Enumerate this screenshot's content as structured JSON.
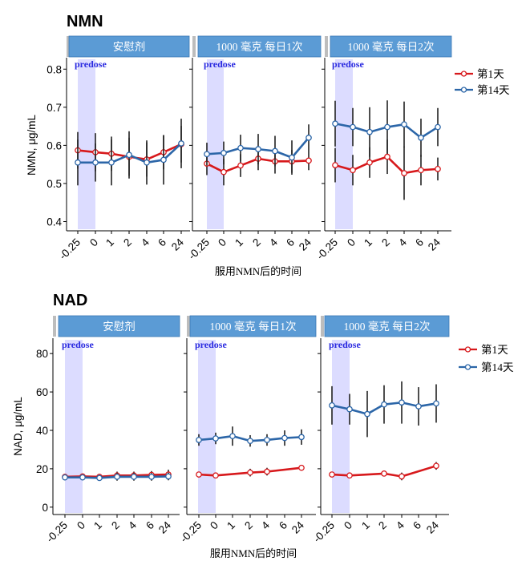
{
  "strip_labels": [
    "安慰剂",
    "1000 毫克 每日1次",
    "1000 毫克 每日2次"
  ],
  "predose_label": "predose",
  "xlabel": "服用NMN后的时间",
  "x_categories": [
    "-0.25",
    "0",
    "1",
    "2",
    "4",
    "6",
    "24"
  ],
  "colors": {
    "day1": "#d7191c",
    "day14": "#2c66a8",
    "strip": "#5b9bd5",
    "predose": "#dcdcff"
  },
  "chart_data": [
    {
      "type": "line",
      "title": "NMN",
      "ylabel": "NMN, μg/mL",
      "ylim": [
        0.38,
        0.83
      ],
      "yticks": [
        0.4,
        0.5,
        0.6,
        0.7,
        0.8
      ],
      "legend": {
        "position": "right",
        "entries": [
          "第1天",
          "第14天"
        ]
      },
      "panels": [
        {
          "label": "安慰剂",
          "series": [
            {
              "name": "第1天",
              "values": [
                0.587,
                0.582,
                0.578,
                0.57,
                0.563,
                0.582,
                0.603
              ],
              "errors": [
                0.048,
                0.05,
                0.045,
                0.05,
                0.045,
                0.045,
                0.048
              ]
            },
            {
              "name": "第14天",
              "values": [
                0.555,
                0.555,
                0.555,
                0.575,
                0.555,
                0.562,
                0.605
              ],
              "errors": [
                0.06,
                0.05,
                0.06,
                0.062,
                0.058,
                0.065,
                0.065
              ]
            }
          ]
        },
        {
          "label": "1000 毫克 每日1次",
          "series": [
            {
              "name": "第1天",
              "values": [
                0.552,
                0.53,
                0.547,
                0.565,
                0.558,
                0.558,
                0.56
              ],
              "errors": [
                0.03,
                0.035,
                0.03,
                0.03,
                0.032,
                0.03,
                0.025
              ]
            },
            {
              "name": "第14天",
              "values": [
                0.577,
                0.58,
                0.593,
                0.59,
                0.585,
                0.568,
                0.62
              ],
              "errors": [
                0.03,
                0.03,
                0.035,
                0.04,
                0.04,
                0.045,
                0.035
              ]
            }
          ]
        },
        {
          "label": "1000 毫克 每日2次",
          "series": [
            {
              "name": "第1天",
              "values": [
                0.548,
                0.535,
                0.555,
                0.57,
                0.527,
                0.535,
                0.538
              ],
              "errors": [
                0.045,
                0.04,
                0.04,
                0.045,
                0.07,
                0.04,
                0.03
              ]
            },
            {
              "name": "第14天",
              "values": [
                0.657,
                0.648,
                0.635,
                0.648,
                0.655,
                0.62,
                0.648
              ],
              "errors": [
                0.06,
                0.05,
                0.065,
                0.07,
                0.06,
                0.05,
                0.05
              ]
            }
          ]
        }
      ]
    },
    {
      "type": "line",
      "title": "NAD",
      "ylabel": "NAD, μg/mL",
      "ylim": [
        -3,
        88
      ],
      "yticks": [
        0,
        20,
        40,
        60,
        80
      ],
      "legend": {
        "position": "right",
        "entries": [
          "第1天",
          "第14天"
        ]
      },
      "panels": [
        {
          "label": "安慰剂",
          "series": [
            {
              "name": "第1天",
              "values": [
                15.8,
                16.0,
                15.8,
                16.5,
                16.5,
                16.8,
                17.0
              ],
              "errors": [
                1.5,
                1.5,
                1.5,
                2.0,
                2.0,
                2.0,
                2.5
              ]
            },
            {
              "name": "第14天",
              "values": [
                15.5,
                15.5,
                15.2,
                15.8,
                15.8,
                15.8,
                16.0
              ],
              "errors": [
                1.5,
                1.5,
                1.5,
                2.0,
                2.0,
                2.0,
                2.0
              ]
            }
          ]
        },
        {
          "label": "1000 毫克 每日1次",
          "series": [
            {
              "name": "第1天",
              "values": [
                17.0,
                16.5,
                null,
                18.0,
                18.5,
                null,
                20.5
              ],
              "errors": [
                1.5,
                1.0,
                0,
                2.0,
                2.0,
                0,
                1.5
              ]
            },
            {
              "name": "第14天",
              "values": [
                35.0,
                35.8,
                37.0,
                34.5,
                35.0,
                36.0,
                36.5
              ],
              "errors": [
                3.0,
                3.0,
                5.0,
                3.0,
                3.0,
                4.0,
                4.0
              ]
            }
          ]
        },
        {
          "label": "1000 毫克 每日2次",
          "series": [
            {
              "name": "第1天",
              "values": [
                17.0,
                16.5,
                null,
                17.5,
                16.0,
                null,
                21.5
              ],
              "errors": [
                1.0,
                1.0,
                0,
                1.5,
                2.0,
                0,
                2.0
              ]
            },
            {
              "name": "第14天",
              "values": [
                53.0,
                51.0,
                48.5,
                53.5,
                54.5,
                52.5,
                54.0
              ],
              "errors": [
                10.0,
                8.0,
                12.0,
                10.0,
                11.0,
                10.0,
                10.0
              ]
            }
          ]
        }
      ]
    }
  ]
}
